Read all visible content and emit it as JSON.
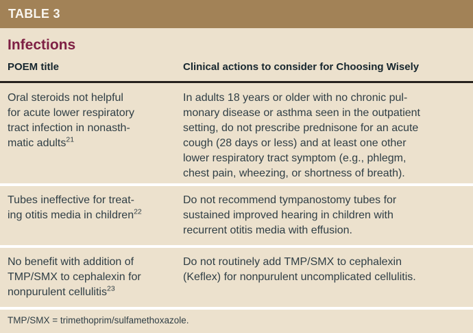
{
  "header": {
    "label": "TABLE 3"
  },
  "section": {
    "title": "Infections"
  },
  "table": {
    "columns": [
      {
        "label": "POEM title"
      },
      {
        "label": "Clinical actions to consider for Choosing Wisely"
      }
    ],
    "rows": [
      {
        "poem_title": "Oral steroids not helpful\nfor acute lower respiratory\ntract infection in nonasth-\nmatic adults",
        "ref": "21",
        "clinical_action": "In adults 18 years or older with no chronic pul-\nmonary disease or asthma seen in the outpatient\nsetting, do not prescribe prednisone for an acute\ncough (28 days or less) and at least one other\nlower respiratory tract symptom (e.g., phlegm,\nchest pain, wheezing, or shortness of breath)."
      },
      {
        "poem_title": "Tubes ineffective for treat-\ning otitis media in children",
        "ref": "22",
        "clinical_action": "Do not recommend tympanostomy tubes for\nsustained improved hearing in children with\nrecurrent otitis media with effusion."
      },
      {
        "poem_title": "No benefit with addition of\nTMP/SMX to cephalexin for\nnonpurulent cellulitis",
        "ref": "23",
        "clinical_action": "Do not routinely add TMP/SMX to cephalexin\n(Keflex) for nonpurulent uncomplicated cellulitis."
      }
    ],
    "footnote": "TMP/SMX = trimethoprim/sulfamethoxazole."
  },
  "colors": {
    "band_bg": "#a28257",
    "band_text": "#f9f6f0",
    "page_bg": "#ece1cd",
    "section_title": "#7e2044",
    "column_header_text": "#16262e",
    "body_text": "#2f3e45",
    "header_rule": "#26211d",
    "row_divider": "#ffffff"
  }
}
